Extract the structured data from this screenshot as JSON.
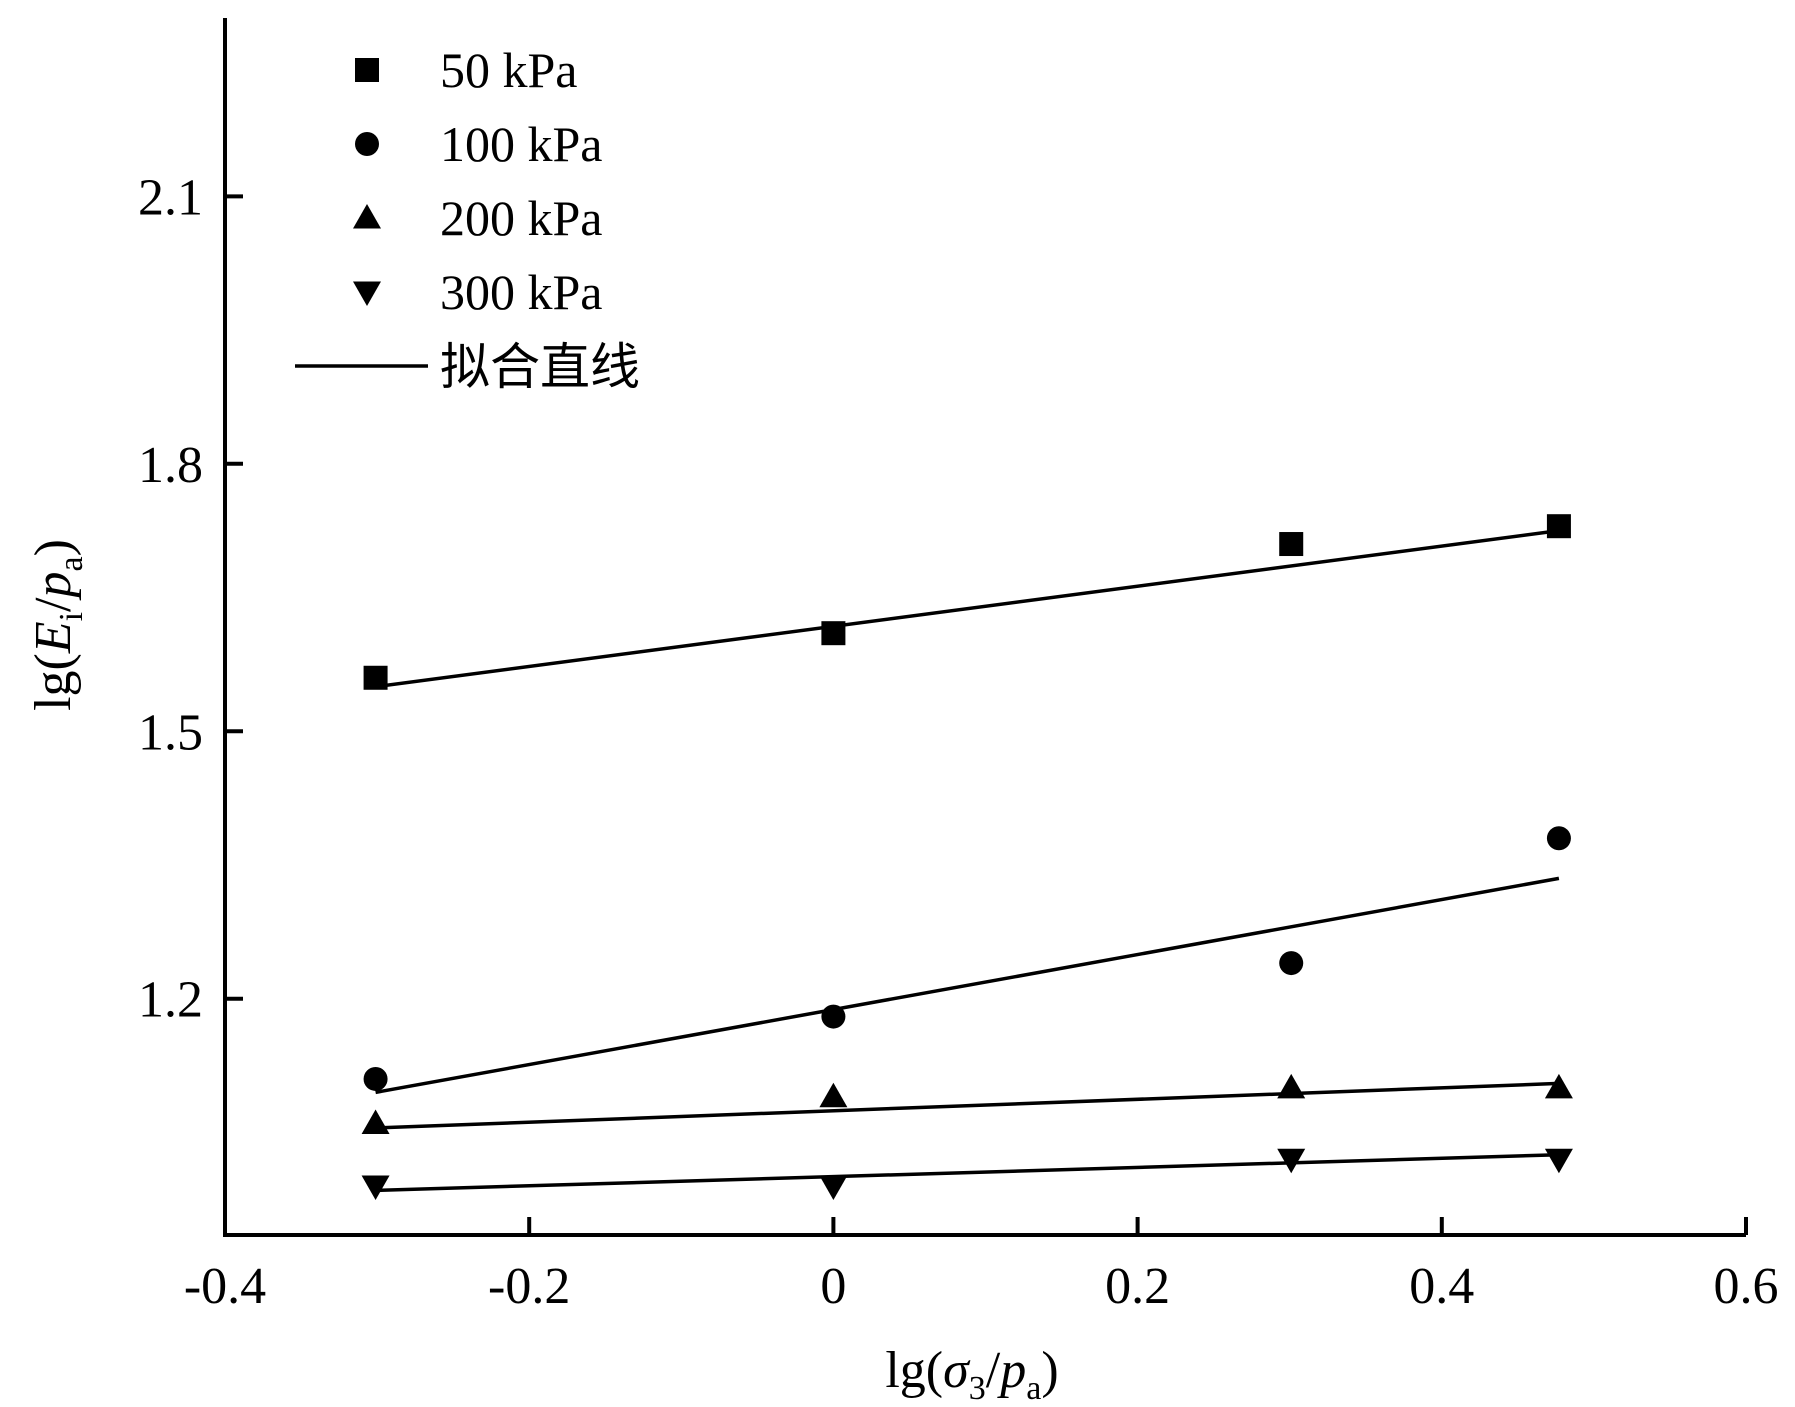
{
  "chart_data": {
    "type": "scatter",
    "xlabel": {
      "prefix": "lg(",
      "sym": "σ",
      "sub": "3",
      "mid": "/",
      "sym2": "p",
      "sub2": "a",
      "suffix": ")"
    },
    "ylabel": {
      "prefix": "lg(",
      "sym": "E",
      "sub": "i",
      "mid": "/",
      "sym2": "p",
      "sub2": "a",
      "suffix": ")"
    },
    "xlim": [
      -0.4,
      0.6
    ],
    "ylim": [
      0.935,
      2.3
    ],
    "x_ticks": [
      -0.4,
      -0.2,
      0,
      0.2,
      0.4,
      0.6
    ],
    "x_tick_labels": [
      "-0.4",
      "-0.2",
      "0",
      "0.2",
      "0.4",
      "0.6"
    ],
    "y_ticks": [
      1.2,
      1.5,
      1.8,
      2.1
    ],
    "y_tick_labels": [
      "1.2",
      "1.5",
      "1.8",
      "2.1"
    ],
    "grid": false,
    "legend_position": "top-left",
    "series": [
      {
        "name": "50 kPa",
        "marker": "square",
        "x": [
          -0.301,
          0,
          0.301,
          0.477
        ],
        "y": [
          1.56,
          1.61,
          1.71,
          1.73
        ],
        "fit": {
          "x": [
            -0.301,
            0.477
          ],
          "y": [
            1.55,
            1.725
          ]
        }
      },
      {
        "name": "100 kPa",
        "marker": "circle",
        "x": [
          -0.301,
          0,
          0.301,
          0.477
        ],
        "y": [
          1.11,
          1.18,
          1.24,
          1.38
        ],
        "fit": {
          "x": [
            -0.301,
            0.477
          ],
          "y": [
            1.095,
            1.335
          ]
        }
      },
      {
        "name": "200 kPa",
        "marker": "triangle-up",
        "x": [
          -0.301,
          0,
          0.301,
          0.477
        ],
        "y": [
          1.06,
          1.09,
          1.1,
          1.1
        ],
        "fit": {
          "x": [
            -0.301,
            0.477
          ],
          "y": [
            1.055,
            1.105
          ]
        }
      },
      {
        "name": "300 kPa",
        "marker": "triangle-down",
        "x": [
          -0.301,
          0,
          0.301,
          0.477
        ],
        "y": [
          0.99,
          0.99,
          1.02,
          1.02
        ],
        "fit": {
          "x": [
            -0.301,
            0.477
          ],
          "y": [
            0.985,
            1.025
          ]
        }
      }
    ],
    "fit_legend_label": "拟合直线"
  }
}
